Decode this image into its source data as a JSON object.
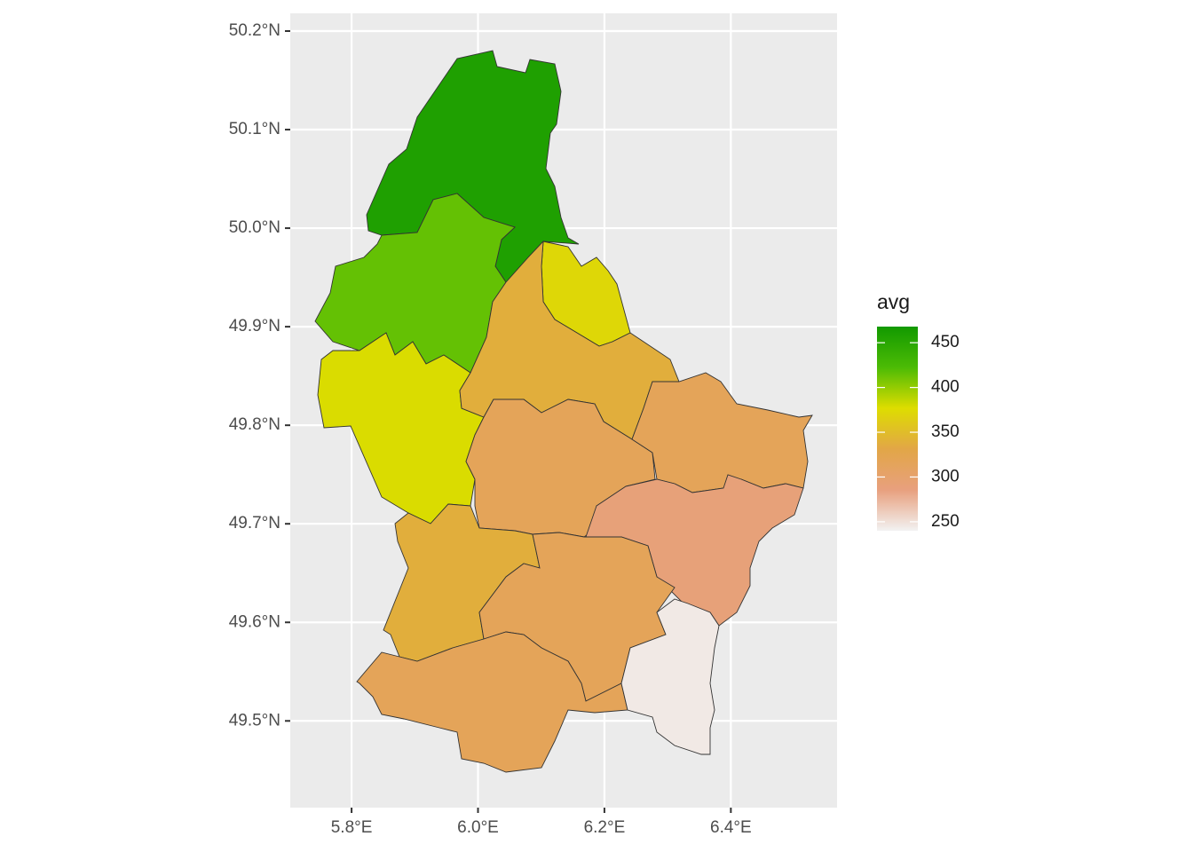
{
  "chart_data": {
    "type": "choropleth",
    "xlim": [
      5.703,
      6.568
    ],
    "ylim": [
      49.412,
      50.218
    ],
    "xticks": [
      {
        "value": 5.8,
        "label": "5.8°E"
      },
      {
        "value": 6.0,
        "label": "6.0°E"
      },
      {
        "value": 6.2,
        "label": "6.2°E"
      },
      {
        "value": 6.4,
        "label": "6.4°E"
      }
    ],
    "yticks": [
      {
        "value": 49.5,
        "label": "49.5°N"
      },
      {
        "value": 49.6,
        "label": "49.6°N"
      },
      {
        "value": 49.7,
        "label": "49.7°N"
      },
      {
        "value": 49.8,
        "label": "49.8°N"
      },
      {
        "value": 49.9,
        "label": "49.9°N"
      },
      {
        "value": 50.0,
        "label": "50.0°N"
      },
      {
        "value": 50.1,
        "label": "50.1°N"
      },
      {
        "value": 50.2,
        "label": "50.2°N"
      }
    ],
    "grid": true,
    "values": [
      458,
      415,
      372,
      378,
      338,
      316,
      316,
      290,
      338,
      316,
      316,
      245
    ],
    "legend": {
      "title": "avg",
      "ticks": [
        250,
        300,
        350,
        400,
        450
      ]
    },
    "fill_limits": [
      240,
      468
    ],
    "fill_colors": [
      "#f2f2f2",
      "#e8a07e",
      "#e2a647",
      "#dedd00",
      "#4cbb05",
      "#129900"
    ]
  }
}
